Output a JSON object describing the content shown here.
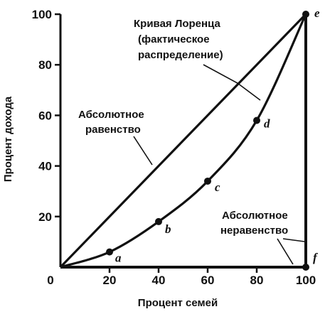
{
  "chart_data": {
    "type": "line",
    "xlabel": "Процент семей",
    "ylabel": "Процент дохода",
    "xlim": [
      0,
      100
    ],
    "ylim": [
      0,
      100
    ],
    "x_ticks": [
      "0",
      "20",
      "40",
      "60",
      "80",
      "100"
    ],
    "y_ticks": [
      "20",
      "40",
      "60",
      "80",
      "100"
    ],
    "grid": false,
    "series": [
      {
        "name": "Абсолютное равенство",
        "x": [
          0,
          100
        ],
        "y": [
          0,
          100
        ]
      },
      {
        "name": "Кривая Лоренца (фактическое распределение)",
        "x": [
          0,
          20,
          40,
          60,
          80,
          100
        ],
        "y": [
          0,
          6,
          18,
          34,
          58,
          100
        ]
      },
      {
        "name": "Абсолютное неравенство",
        "x": [
          0,
          100,
          100
        ],
        "y": [
          0,
          0,
          100
        ]
      }
    ],
    "points": [
      {
        "label": "a",
        "x": 20,
        "y": 6
      },
      {
        "label": "b",
        "x": 40,
        "y": 18
      },
      {
        "label": "c",
        "x": 60,
        "y": 34
      },
      {
        "label": "d",
        "x": 80,
        "y": 58
      },
      {
        "label": "e",
        "x": 100,
        "y": 100
      },
      {
        "label": "f",
        "x": 100,
        "y": 0
      }
    ],
    "annotations": {
      "lorenz": [
        "Кривая Лоренца",
        "(фактическое",
        "распределение)"
      ],
      "equality": [
        "Абсолютное",
        "равенство"
      ],
      "inequality": [
        "Абсолютное",
        "неравенство"
      ]
    }
  }
}
